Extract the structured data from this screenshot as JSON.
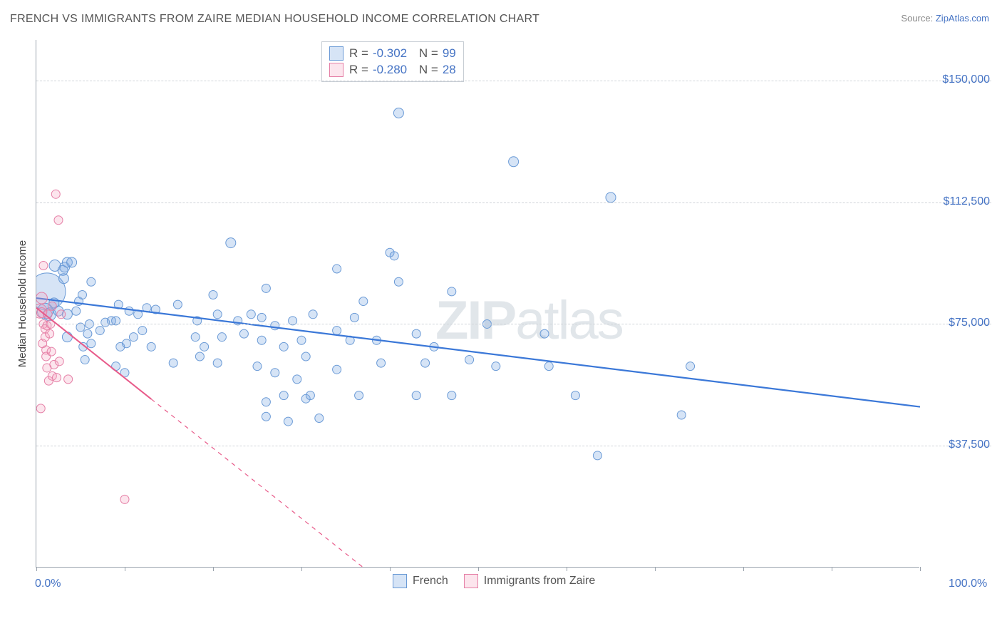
{
  "title": "FRENCH VS IMMIGRANTS FROM ZAIRE MEDIAN HOUSEHOLD INCOME CORRELATION CHART",
  "source_label": "Source:",
  "source_name": "ZipAtlas.com",
  "watermark_a": "ZIP",
  "watermark_b": "atlas",
  "chart": {
    "type": "scatter",
    "background_color": "#ffffff",
    "grid_color": "#d0d4d9",
    "grid_dash": "4,4",
    "axis_color": "#9aa3ad",
    "xlim": [
      0,
      100
    ],
    "ylim": [
      0,
      162500
    ],
    "x_tick_positions": [
      0,
      10,
      20,
      30,
      40,
      50,
      60,
      70,
      80,
      90,
      100
    ],
    "x_min_label": "0.0%",
    "x_max_label": "100.0%",
    "y_gridlines": [
      37500,
      75000,
      112500,
      150000
    ],
    "y_tick_labels": [
      "$37,500",
      "$75,000",
      "$112,500",
      "$150,000"
    ],
    "y_axis_label": "Median Household Income",
    "label_fontsize": 15,
    "tick_fontsize": 16,
    "series": [
      {
        "name": "French",
        "fill": "rgba(120,165,225,0.30)",
        "stroke": "#6a9ad6",
        "stroke_width": 1,
        "trend": {
          "color": "#3b78d8",
          "width": 2.2,
          "x1": 0,
          "y1": 83000,
          "x2": 100,
          "y2": 49500,
          "solid_until_x": 100
        },
        "R_label": "R =",
        "R_value": "-0.302",
        "N_label": "N =",
        "N_value": "99",
        "points": [
          {
            "x": 1.2,
            "y": 85000,
            "r": 26
          },
          {
            "x": 1.0,
            "y": 79000,
            "r": 11
          },
          {
            "x": 1.5,
            "y": 78000,
            "r": 9
          },
          {
            "x": 2.1,
            "y": 93000,
            "r": 8
          },
          {
            "x": 2.0,
            "y": 81500,
            "r": 7
          },
          {
            "x": 2.5,
            "y": 79000,
            "r": 7
          },
          {
            "x": 3.0,
            "y": 91500,
            "r": 7
          },
          {
            "x": 3.1,
            "y": 89000,
            "r": 7
          },
          {
            "x": 3.2,
            "y": 92500,
            "r": 7
          },
          {
            "x": 3.5,
            "y": 94000,
            "r": 7
          },
          {
            "x": 3.5,
            "y": 78000,
            "r": 7
          },
          {
            "x": 3.5,
            "y": 71000,
            "r": 7
          },
          {
            "x": 4.0,
            "y": 94000,
            "r": 7
          },
          {
            "x": 4.5,
            "y": 79000,
            "r": 6
          },
          {
            "x": 4.8,
            "y": 82000,
            "r": 6
          },
          {
            "x": 5.2,
            "y": 84000,
            "r": 6
          },
          {
            "x": 5.0,
            "y": 74000,
            "r": 6
          },
          {
            "x": 5.3,
            "y": 68000,
            "r": 6
          },
          {
            "x": 5.5,
            "y": 64000,
            "r": 6
          },
          {
            "x": 5.8,
            "y": 72000,
            "r": 6
          },
          {
            "x": 6.0,
            "y": 75000,
            "r": 6
          },
          {
            "x": 6.2,
            "y": 88000,
            "r": 6
          },
          {
            "x": 6.2,
            "y": 69000,
            "r": 6
          },
          {
            "x": 7.2,
            "y": 73000,
            "r": 6
          },
          {
            "x": 7.8,
            "y": 75500,
            "r": 6
          },
          {
            "x": 8.5,
            "y": 76000,
            "r": 6
          },
          {
            "x": 9.0,
            "y": 76000,
            "r": 6
          },
          {
            "x": 9.0,
            "y": 62000,
            "r": 6
          },
          {
            "x": 9.3,
            "y": 81000,
            "r": 6
          },
          {
            "x": 9.5,
            "y": 68000,
            "r": 6
          },
          {
            "x": 10.0,
            "y": 60000,
            "r": 6
          },
          {
            "x": 10.2,
            "y": 69000,
            "r": 6
          },
          {
            "x": 10.5,
            "y": 79000,
            "r": 6
          },
          {
            "x": 11.0,
            "y": 71000,
            "r": 6
          },
          {
            "x": 11.5,
            "y": 78000,
            "r": 6
          },
          {
            "x": 12.0,
            "y": 73000,
            "r": 6
          },
          {
            "x": 12.5,
            "y": 80000,
            "r": 6
          },
          {
            "x": 13.0,
            "y": 68000,
            "r": 6
          },
          {
            "x": 13.5,
            "y": 79500,
            "r": 6
          },
          {
            "x": 15.5,
            "y": 63000,
            "r": 6
          },
          {
            "x": 16.0,
            "y": 81000,
            "r": 6
          },
          {
            "x": 18.0,
            "y": 71000,
            "r": 6
          },
          {
            "x": 18.5,
            "y": 65000,
            "r": 6
          },
          {
            "x": 18.2,
            "y": 76000,
            "r": 6
          },
          {
            "x": 19.0,
            "y": 68000,
            "r": 6
          },
          {
            "x": 20.0,
            "y": 84000,
            "r": 6
          },
          {
            "x": 20.5,
            "y": 78000,
            "r": 6
          },
          {
            "x": 20.5,
            "y": 63000,
            "r": 6
          },
          {
            "x": 21,
            "y": 71000,
            "r": 6
          },
          {
            "x": 22.0,
            "y": 100000,
            "r": 7
          },
          {
            "x": 22.8,
            "y": 76000,
            "r": 6
          },
          {
            "x": 23.5,
            "y": 72000,
            "r": 6
          },
          {
            "x": 24.3,
            "y": 78000,
            "r": 6
          },
          {
            "x": 25.0,
            "y": 62000,
            "r": 6
          },
          {
            "x": 25.5,
            "y": 70000,
            "r": 6
          },
          {
            "x": 25.5,
            "y": 77000,
            "r": 6
          },
          {
            "x": 26.0,
            "y": 51000,
            "r": 6
          },
          {
            "x": 26.0,
            "y": 46500,
            "r": 6
          },
          {
            "x": 26.0,
            "y": 86000,
            "r": 6
          },
          {
            "x": 27.0,
            "y": 60000,
            "r": 6
          },
          {
            "x": 27.0,
            "y": 74500,
            "r": 6
          },
          {
            "x": 28.0,
            "y": 68000,
            "r": 6
          },
          {
            "x": 28.0,
            "y": 53000,
            "r": 6
          },
          {
            "x": 28.5,
            "y": 45000,
            "r": 6
          },
          {
            "x": 29.0,
            "y": 76000,
            "r": 6
          },
          {
            "x": 29.5,
            "y": 58000,
            "r": 6
          },
          {
            "x": 30.0,
            "y": 70000,
            "r": 6
          },
          {
            "x": 30.5,
            "y": 52000,
            "r": 6
          },
          {
            "x": 30.5,
            "y": 65000,
            "r": 6
          },
          {
            "x": 31.0,
            "y": 53000,
            "r": 6
          },
          {
            "x": 31.3,
            "y": 78000,
            "r": 6
          },
          {
            "x": 32.0,
            "y": 46000,
            "r": 6
          },
          {
            "x": 34.0,
            "y": 61000,
            "r": 6
          },
          {
            "x": 34.0,
            "y": 73000,
            "r": 6
          },
          {
            "x": 34.0,
            "y": 92000,
            "r": 6
          },
          {
            "x": 35.5,
            "y": 70000,
            "r": 6
          },
          {
            "x": 36.0,
            "y": 77000,
            "r": 6
          },
          {
            "x": 36.5,
            "y": 53000,
            "r": 6
          },
          {
            "x": 37.0,
            "y": 82000,
            "r": 6
          },
          {
            "x": 38.5,
            "y": 70000,
            "r": 6
          },
          {
            "x": 39.0,
            "y": 63000,
            "r": 6
          },
          {
            "x": 40.0,
            "y": 97000,
            "r": 6
          },
          {
            "x": 40.5,
            "y": 96000,
            "r": 6
          },
          {
            "x": 41.0,
            "y": 88000,
            "r": 6
          },
          {
            "x": 41.0,
            "y": 140000,
            "r": 7
          },
          {
            "x": 43.0,
            "y": 53000,
            "r": 6
          },
          {
            "x": 43.0,
            "y": 72000,
            "r": 6
          },
          {
            "x": 44.0,
            "y": 63000,
            "r": 6
          },
          {
            "x": 45.0,
            "y": 68000,
            "r": 6
          },
          {
            "x": 47.0,
            "y": 53000,
            "r": 6
          },
          {
            "x": 47.0,
            "y": 85000,
            "r": 6
          },
          {
            "x": 49.0,
            "y": 64000,
            "r": 6
          },
          {
            "x": 51.0,
            "y": 75000,
            "r": 6
          },
          {
            "x": 52.0,
            "y": 62000,
            "r": 6
          },
          {
            "x": 54.0,
            "y": 125000,
            "r": 7
          },
          {
            "x": 57.5,
            "y": 72000,
            "r": 6
          },
          {
            "x": 58.0,
            "y": 62000,
            "r": 6
          },
          {
            "x": 61.0,
            "y": 53000,
            "r": 6
          },
          {
            "x": 63.5,
            "y": 34500,
            "r": 6
          },
          {
            "x": 65.0,
            "y": 114000,
            "r": 7
          },
          {
            "x": 73.0,
            "y": 47000,
            "r": 6
          },
          {
            "x": 74.0,
            "y": 62000,
            "r": 6
          }
        ]
      },
      {
        "name": "Immigrants from Zaire",
        "fill": "rgba(245,160,190,0.28)",
        "stroke": "#e57fa6",
        "stroke_width": 1,
        "trend": {
          "color": "#e85b8a",
          "width": 2,
          "x1": 0,
          "y1": 80000,
          "x2": 37,
          "y2": 0,
          "solid_until_x": 13
        },
        "R_label": "R =",
        "R_value": "-0.280",
        "N_label": "N =",
        "N_value": "28",
        "points": [
          {
            "x": 0.4,
            "y": 79000,
            "r": 10
          },
          {
            "x": 0.6,
            "y": 83000,
            "r": 8
          },
          {
            "x": 0.6,
            "y": 78500,
            "r": 7
          },
          {
            "x": 0.7,
            "y": 69000,
            "r": 6
          },
          {
            "x": 0.8,
            "y": 93000,
            "r": 6
          },
          {
            "x": 0.8,
            "y": 75000,
            "r": 6
          },
          {
            "x": 1.0,
            "y": 73500,
            "r": 6
          },
          {
            "x": 1.0,
            "y": 71000,
            "r": 6
          },
          {
            "x": 1.1,
            "y": 67000,
            "r": 6
          },
          {
            "x": 1.1,
            "y": 65000,
            "r": 6
          },
          {
            "x": 1.2,
            "y": 61500,
            "r": 6
          },
          {
            "x": 1.2,
            "y": 74500,
            "r": 6
          },
          {
            "x": 1.3,
            "y": 78000,
            "r": 6
          },
          {
            "x": 1.4,
            "y": 57500,
            "r": 6
          },
          {
            "x": 1.5,
            "y": 72000,
            "r": 6
          },
          {
            "x": 1.6,
            "y": 75000,
            "r": 6
          },
          {
            "x": 1.7,
            "y": 66500,
            "r": 6
          },
          {
            "x": 1.8,
            "y": 80500,
            "r": 6
          },
          {
            "x": 1.8,
            "y": 59000,
            "r": 6
          },
          {
            "x": 2.0,
            "y": 62500,
            "r": 6
          },
          {
            "x": 2.2,
            "y": 115000,
            "r": 6
          },
          {
            "x": 2.3,
            "y": 58500,
            "r": 6
          },
          {
            "x": 2.5,
            "y": 107000,
            "r": 6
          },
          {
            "x": 2.6,
            "y": 63500,
            "r": 6
          },
          {
            "x": 2.8,
            "y": 78000,
            "r": 6
          },
          {
            "x": 3.6,
            "y": 58000,
            "r": 6
          },
          {
            "x": 0.5,
            "y": 49000,
            "r": 6
          },
          {
            "x": 10.0,
            "y": 21000,
            "r": 6
          }
        ]
      }
    ],
    "bottom_legend": [
      {
        "label": "French",
        "fill": "rgba(120,165,225,0.30)",
        "stroke": "#6a9ad6"
      },
      {
        "label": "Immigrants from Zaire",
        "fill": "rgba(245,160,190,0.28)",
        "stroke": "#e57fa6"
      }
    ]
  }
}
